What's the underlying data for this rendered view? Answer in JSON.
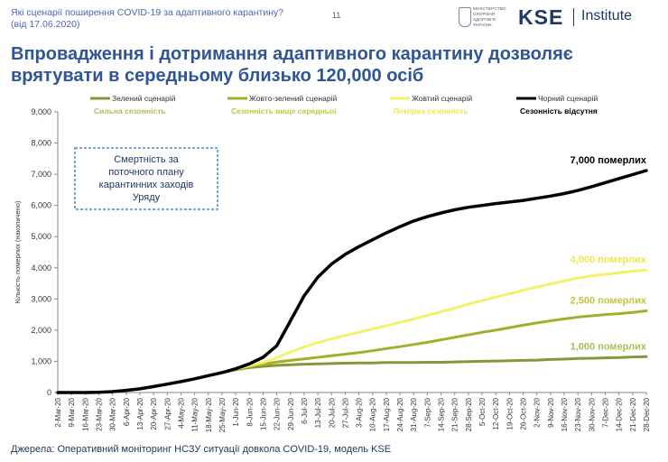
{
  "header": {
    "question": "Які сценарії поширення COVID-19 за адаптивного карантину?",
    "date": "(від 17.06.2020)",
    "page_number": "11",
    "ministry_lines": [
      "МІНІСТЕРСТВО",
      "ОХОРОНИ",
      "ЗДОРОВ'Я",
      "УКРАЇНИ"
    ],
    "logo_text": "KSE",
    "institute": "Institute"
  },
  "title": "Впровадження і дотримання адаптивного карантину дозволяє врятувати в середньому близько 120,000 осіб",
  "source": "Джерела: Оперативний моніторинг НСЗУ ситуації довкола COVID-19, модель KSE",
  "chart_data": {
    "type": "line",
    "ylabel": "Кількість померлих (накопичено)",
    "ylim": [
      0,
      9000
    ],
    "yticks": [
      0,
      1000,
      2000,
      3000,
      4000,
      5000,
      6000,
      7000,
      8000,
      9000
    ],
    "ytick_labels": [
      "0",
      "1,000",
      "2,000",
      "3,000",
      "4,000",
      "5,000",
      "6,000",
      "7,000",
      "8,000",
      "9,000"
    ],
    "categories": [
      "2-Mar-20",
      "9-Mar-20",
      "16-Mar-20",
      "23-Mar-20",
      "30-Mar-20",
      "6-Apr-20",
      "13-Apr-20",
      "20-Apr-20",
      "27-Apr-20",
      "4-May-20",
      "11-May-20",
      "18-May-20",
      "25-May-20",
      "1-Jun-20",
      "8-Jun-20",
      "15-Jun-20",
      "22-Jun-20",
      "29-Jun-20",
      "6-Jul-20",
      "13-Jul-20",
      "20-Jul-20",
      "27-Jul-20",
      "3-Aug-20",
      "10-Aug-20",
      "17-Aug-20",
      "24-Aug-20",
      "31-Aug-20",
      "7-Sep-20",
      "14-Sep-20",
      "21-Sep-20",
      "28-Sep-20",
      "5-Oct-20",
      "12-Oct-20",
      "19-Oct-20",
      "26-Oct-20",
      "2-Nov-20",
      "9-Nov-20",
      "16-Nov-20",
      "23-Nov-20",
      "30-Nov-20",
      "7-Dec-20",
      "14-Dec-20",
      "21-Dec-20",
      "28-Dec-20"
    ],
    "series": [
      {
        "name": "Зелений сценарій",
        "subtitle": "Сильна сезонність",
        "color": "#7f9a37",
        "label_color": "#a8c05a",
        "end_label": "1,000 померлих",
        "values": [
          0,
          0,
          0,
          10,
          30,
          70,
          120,
          190,
          270,
          350,
          440,
          540,
          640,
          730,
          800,
          840,
          870,
          890,
          910,
          920,
          930,
          940,
          950,
          950,
          960,
          960,
          960,
          970,
          970,
          980,
          990,
          1000,
          1010,
          1020,
          1030,
          1040,
          1060,
          1070,
          1090,
          1100,
          1110,
          1120,
          1140,
          1150
        ]
      },
      {
        "name": "Жовто-зелений сценарій",
        "subtitle": "Сезонність вище середньої",
        "color": "#a5ae2a",
        "label_color": "#c0c83c",
        "end_label": "2,500 померлих",
        "values": [
          0,
          0,
          0,
          10,
          30,
          70,
          120,
          190,
          270,
          350,
          440,
          540,
          640,
          740,
          830,
          900,
          980,
          1030,
          1080,
          1130,
          1180,
          1230,
          1280,
          1340,
          1410,
          1470,
          1540,
          1610,
          1690,
          1770,
          1850,
          1930,
          2000,
          2080,
          2160,
          2230,
          2300,
          2360,
          2420,
          2460,
          2500,
          2530,
          2570,
          2620
        ]
      },
      {
        "name": "Жовтий сценарій",
        "subtitle": "Помірна сезонність",
        "color": "#f2f26a",
        "label_color": "#ece84a",
        "end_label": "4,000 померлих",
        "values": [
          0,
          0,
          0,
          10,
          30,
          70,
          120,
          190,
          270,
          350,
          440,
          540,
          640,
          750,
          860,
          960,
          1120,
          1300,
          1460,
          1600,
          1720,
          1830,
          1930,
          2040,
          2140,
          2250,
          2360,
          2470,
          2590,
          2710,
          2830,
          2950,
          3060,
          3170,
          3280,
          3380,
          3480,
          3580,
          3670,
          3740,
          3790,
          3840,
          3890,
          3930
        ]
      },
      {
        "name": "Чорний сценарій",
        "subtitle": "Сезонність відсутня",
        "color": "#000000",
        "label_color": "#000000",
        "end_label": "7,000 померлих",
        "values": [
          0,
          0,
          0,
          10,
          30,
          70,
          120,
          190,
          270,
          350,
          440,
          540,
          640,
          760,
          920,
          1130,
          1500,
          2300,
          3100,
          3700,
          4120,
          4430,
          4680,
          4900,
          5120,
          5320,
          5500,
          5640,
          5760,
          5860,
          5940,
          6000,
          6060,
          6110,
          6160,
          6230,
          6300,
          6380,
          6480,
          6600,
          6730,
          6860,
          6990,
          7120
        ]
      }
    ],
    "annotation": {
      "text_lines": [
        "Смертність за",
        "поточного плану",
        "карантинних заходів",
        "Уряду"
      ],
      "border_color": "#2e75b6"
    },
    "legend_position": "top",
    "grid": false
  }
}
